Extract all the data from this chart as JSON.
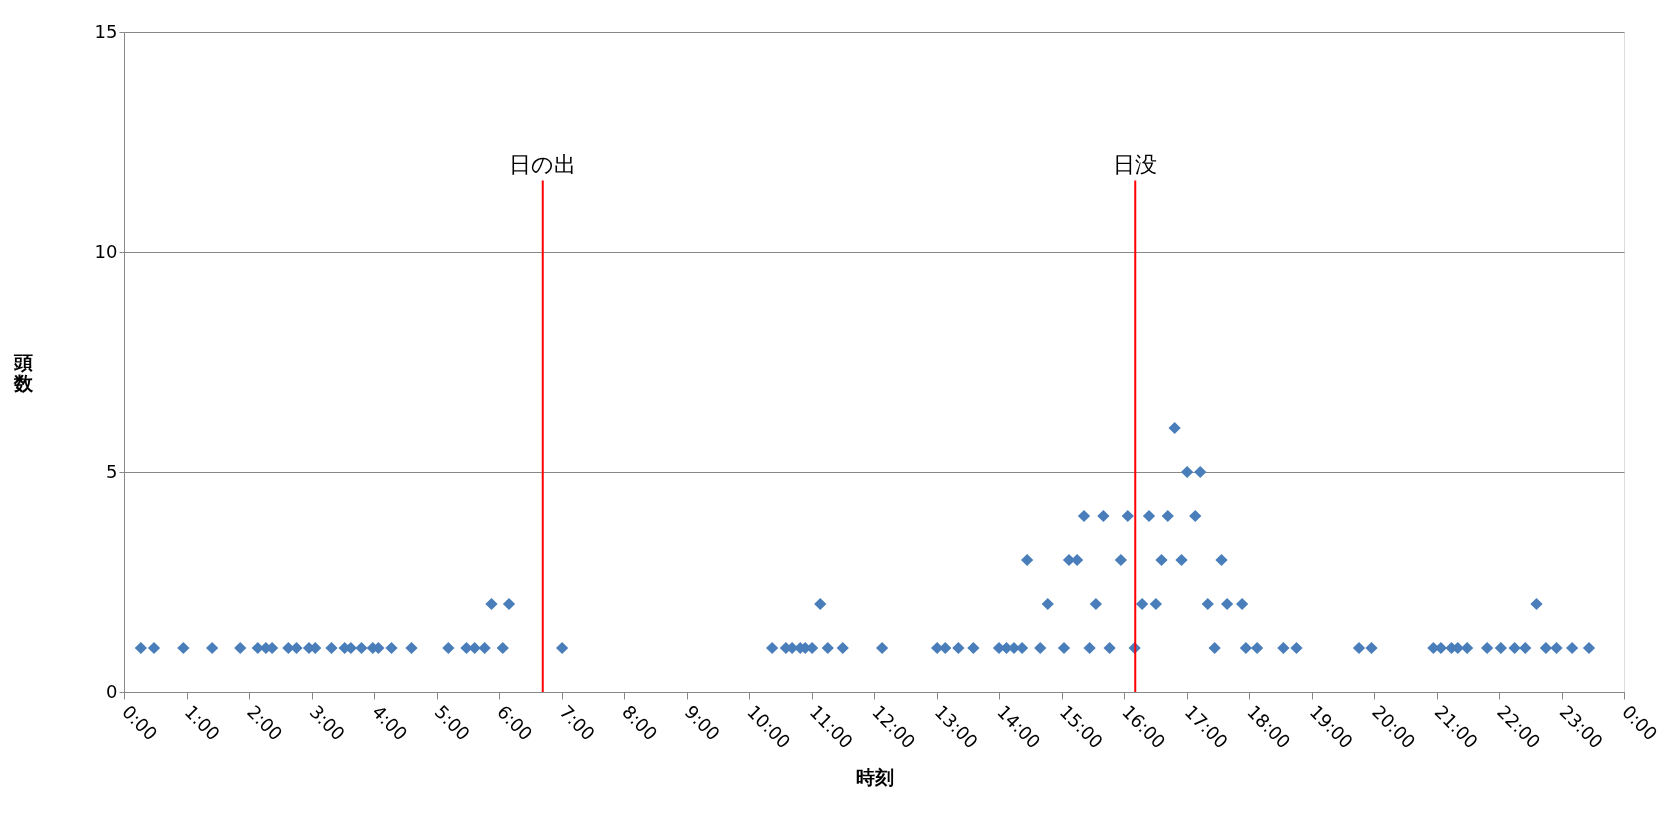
{
  "chart_data": {
    "type": "scatter",
    "xlabel": "時刻",
    "ylabel": "頭数",
    "x": [
      0.27,
      0.48,
      0.95,
      1.41,
      1.86,
      2.14,
      2.27,
      2.37,
      2.63,
      2.76,
      2.96,
      3.06,
      3.32,
      3.53,
      3.63,
      3.8,
      3.98,
      4.07,
      4.28,
      4.6,
      5.19,
      5.48,
      5.61,
      5.77,
      5.88,
      6.06,
      6.16,
      7.01,
      10.37,
      10.59,
      10.69,
      10.82,
      10.9,
      11.01,
      11.14,
      11.26,
      11.5,
      12.13,
      13.01,
      13.14,
      13.35,
      13.59,
      14.0,
      14.12,
      14.24,
      14.37,
      14.45,
      14.66,
      14.78,
      15.04,
      15.12,
      15.25,
      15.36,
      15.45,
      15.55,
      15.67,
      15.77,
      15.95,
      16.06,
      16.17,
      16.29,
      16.4,
      16.51,
      16.6,
      16.7,
      16.81,
      16.92,
      17.01,
      17.14,
      17.22,
      17.34,
      17.45,
      17.56,
      17.65,
      17.89,
      17.95,
      18.13,
      18.55,
      18.76,
      19.76,
      19.96,
      20.95,
      21.07,
      21.24,
      21.34,
      21.49,
      21.81,
      22.03,
      22.25,
      22.42,
      22.6,
      22.75,
      22.92,
      23.17,
      23.44
    ],
    "series": [
      {
        "color": "#4a7ebb",
        "values": [
          1,
          1,
          1,
          1,
          1,
          1,
          1,
          1,
          1,
          1,
          1,
          1,
          1,
          1,
          1,
          1,
          1,
          1,
          1,
          1,
          1,
          1,
          1,
          1,
          2,
          1,
          2,
          1,
          1,
          1,
          1,
          1,
          1,
          1,
          2,
          1,
          1,
          1,
          1,
          1,
          1,
          1,
          1,
          1,
          1,
          1,
          3,
          1,
          2,
          1,
          3,
          3,
          4,
          1,
          2,
          4,
          1,
          3,
          4,
          1,
          2,
          4,
          2,
          3,
          4,
          6,
          3,
          5,
          4,
          5,
          2,
          1,
          3,
          2,
          2,
          1,
          1,
          1,
          1,
          1,
          1,
          1,
          1,
          1,
          1,
          1,
          1,
          1,
          1,
          1,
          2,
          1,
          1,
          1,
          1
        ]
      }
    ],
    "marker": "diamond",
    "xlim": [
      0,
      24
    ],
    "xticks": [
      {
        "value": 0,
        "label": "0:00"
      },
      {
        "value": 1,
        "label": "1:00"
      },
      {
        "value": 2,
        "label": "2:00"
      },
      {
        "value": 3,
        "label": "3:00"
      },
      {
        "value": 4,
        "label": "4:00"
      },
      {
        "value": 5,
        "label": "5:00"
      },
      {
        "value": 6,
        "label": "6:00"
      },
      {
        "value": 7,
        "label": "7:00"
      },
      {
        "value": 8,
        "label": "8:00"
      },
      {
        "value": 9,
        "label": "9:00"
      },
      {
        "value": 10,
        "label": "10:00"
      },
      {
        "value": 11,
        "label": "11:00"
      },
      {
        "value": 12,
        "label": "12:00"
      },
      {
        "value": 13,
        "label": "13:00"
      },
      {
        "value": 14,
        "label": "14:00"
      },
      {
        "value": 15,
        "label": "15:00"
      },
      {
        "value": 16,
        "label": "16:00"
      },
      {
        "value": 17,
        "label": "17:00"
      },
      {
        "value": 18,
        "label": "18:00"
      },
      {
        "value": 19,
        "label": "19:00"
      },
      {
        "value": 20,
        "label": "20:00"
      },
      {
        "value": 21,
        "label": "21:00"
      },
      {
        "value": 22,
        "label": "22:00"
      },
      {
        "value": 23,
        "label": "23:00"
      },
      {
        "value": 24,
        "label": "0:00"
      }
    ],
    "ylim": [
      0,
      15
    ],
    "yticks": [
      0,
      5,
      10,
      15
    ],
    "grid": "y",
    "ref_lines": [
      {
        "axis": "x",
        "value": 6.7,
        "label": "日の出",
        "color": "#ff0000"
      },
      {
        "axis": "x",
        "value": 16.18,
        "label": "日没",
        "color": "#ff0000"
      }
    ]
  }
}
